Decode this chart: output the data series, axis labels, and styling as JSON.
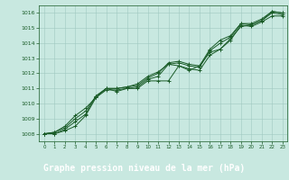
{
  "xlabel": "Graphe pression niveau de la mer (hPa)",
  "xlim": [
    -0.5,
    23.5
  ],
  "ylim": [
    1007.5,
    1016.5
  ],
  "yticks": [
    1008,
    1009,
    1010,
    1011,
    1012,
    1013,
    1014,
    1015,
    1016
  ],
  "xticks": [
    0,
    1,
    2,
    3,
    4,
    5,
    6,
    7,
    8,
    9,
    10,
    11,
    12,
    13,
    14,
    15,
    16,
    17,
    18,
    19,
    20,
    21,
    22,
    23
  ],
  "background_color": "#c8e8e0",
  "xlabel_bg_color": "#2e7d32",
  "xlabel_text_color": "#ffffff",
  "grid_color": "#a0c8c0",
  "line_color": "#1a5c28",
  "marker": "+",
  "series": [
    [
      1008.0,
      1008.0,
      1008.2,
      1008.5,
      1009.2,
      1010.4,
      1010.9,
      1010.9,
      1011.0,
      1011.0,
      1011.5,
      1011.5,
      1011.5,
      1012.5,
      1012.3,
      1012.2,
      1013.2,
      1013.6,
      1014.2,
      1015.2,
      1015.1,
      1015.4,
      1015.8,
      1015.8
    ],
    [
      1008.0,
      1008.0,
      1008.3,
      1008.8,
      1009.3,
      1010.5,
      1011.0,
      1010.8,
      1011.0,
      1011.1,
      1011.6,
      1011.8,
      1012.6,
      1012.7,
      1012.5,
      1012.4,
      1013.5,
      1014.0,
      1014.4,
      1015.3,
      1015.2,
      1015.5,
      1016.0,
      1015.9
    ],
    [
      1008.0,
      1008.1,
      1008.4,
      1009.0,
      1009.5,
      1010.5,
      1011.0,
      1011.0,
      1011.1,
      1011.2,
      1011.7,
      1012.0,
      1012.7,
      1012.8,
      1012.6,
      1012.5,
      1013.6,
      1014.2,
      1014.5,
      1015.3,
      1015.3,
      1015.6,
      1016.1,
      1016.0
    ],
    [
      1008.0,
      1008.1,
      1008.5,
      1009.2,
      1009.7,
      1010.4,
      1011.0,
      1011.0,
      1011.1,
      1011.3,
      1011.8,
      1012.1,
      1012.6,
      1012.5,
      1012.2,
      1012.5,
      1013.4,
      1013.6,
      1014.3,
      1015.1,
      1015.2,
      1015.5,
      1016.1,
      1016.0
    ]
  ]
}
